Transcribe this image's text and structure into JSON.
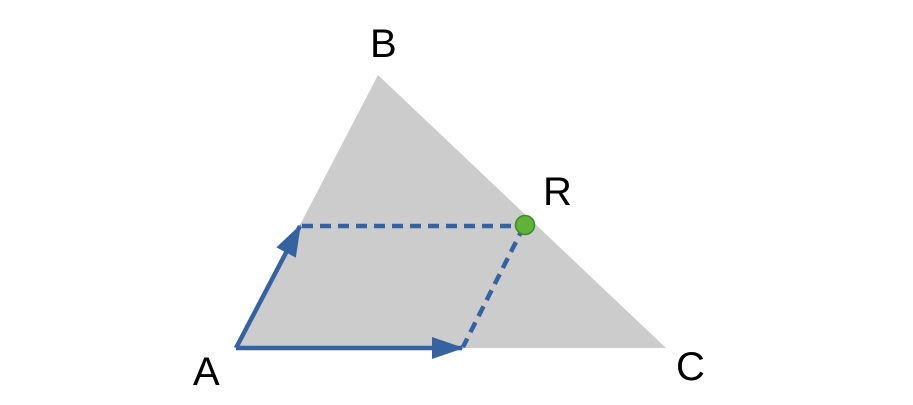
{
  "diagram": {
    "labels": {
      "a": "A",
      "b": "B",
      "c": "C",
      "r": "R"
    },
    "colors": {
      "triangle_fill": "#cccccc",
      "vector": "#3563a2",
      "point_fill": "#5fb33a",
      "point_stroke": "#3d8a1f",
      "label": "#000000"
    },
    "icons": {
      "point_r": "green-dot"
    }
  }
}
